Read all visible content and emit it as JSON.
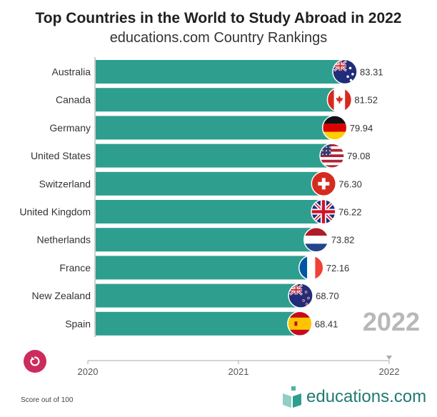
{
  "header": {
    "title": "Top Countries in the World to Study Abroad in 2022",
    "subtitle": "educations.com Country Rankings"
  },
  "chart_data": {
    "type": "bar",
    "orientation": "horizontal",
    "title": "Top Countries in the World to Study Abroad in 2022",
    "subtitle": "educations.com Country Rankings",
    "categories": [
      "Australia",
      "Canada",
      "Germany",
      "United States",
      "Switzerland",
      "United Kingdom",
      "Netherlands",
      "France",
      "New Zealand",
      "Spain"
    ],
    "values": [
      83.31,
      81.52,
      79.94,
      79.08,
      76.3,
      76.22,
      73.82,
      72.16,
      68.7,
      68.41
    ],
    "value_labels": [
      "83.31",
      "81.52",
      "79.94",
      "79.08",
      "76.30",
      "76.22",
      "73.82",
      "72.16",
      "68.70",
      "68.41"
    ],
    "xlabel": "Score out of 100",
    "ylabel": "",
    "timeline": {
      "ticks": [
        "2020",
        "2021",
        "2022"
      ],
      "current": "2022"
    },
    "bar_color": "#2e9e8f"
  },
  "flags": [
    "australia-flag",
    "canada-flag",
    "germany-flag",
    "united-states-flag",
    "switzerland-flag",
    "united-kingdom-flag",
    "netherlands-flag",
    "france-flag",
    "new-zealand-flag",
    "spain-flag"
  ],
  "overlay": {
    "year": "2022"
  },
  "controls": {
    "replay_icon": "replay-icon"
  },
  "footer": {
    "note": "Score out of 100",
    "logo_text": "educations.com"
  }
}
